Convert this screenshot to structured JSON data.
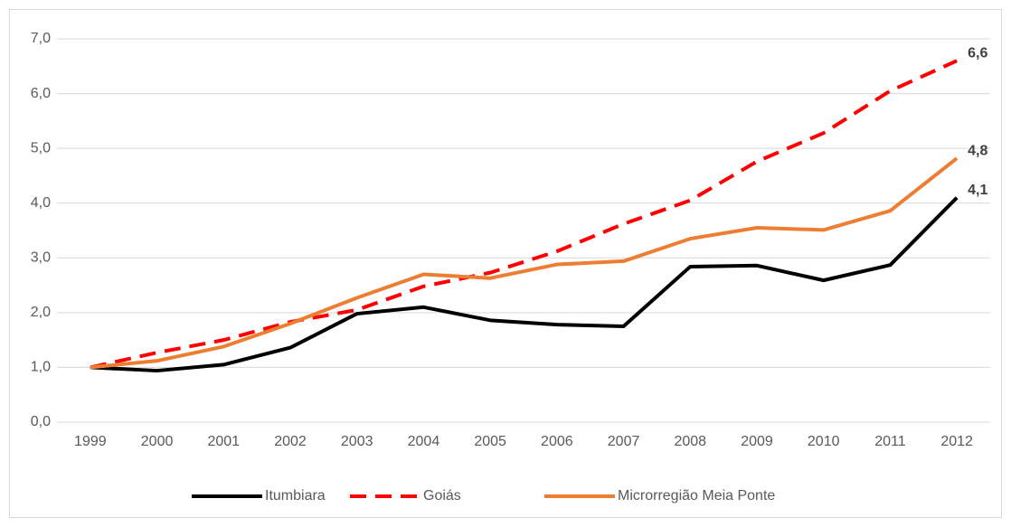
{
  "chart_data": {
    "type": "line",
    "categories": [
      "1999",
      "2000",
      "2001",
      "2002",
      "2003",
      "2004",
      "2005",
      "2006",
      "2007",
      "2008",
      "2009",
      "2010",
      "2011",
      "2012"
    ],
    "series": [
      {
        "name": "Itumbiara",
        "color": "#000000",
        "dash": false,
        "values": [
          1.0,
          0.94,
          1.05,
          1.36,
          1.98,
          2.1,
          1.86,
          1.78,
          1.75,
          2.84,
          2.86,
          2.59,
          2.87,
          4.1
        ],
        "value_labels": [
          null,
          null,
          null,
          null,
          null,
          null,
          null,
          null,
          null,
          null,
          null,
          null,
          null,
          "4,1"
        ]
      },
      {
        "name": "Goiás",
        "color": "#ff0000",
        "dash": true,
        "values": [
          1.0,
          1.27,
          1.5,
          1.83,
          2.05,
          2.48,
          2.73,
          3.12,
          3.62,
          4.05,
          4.76,
          5.28,
          6.05,
          6.6
        ],
        "value_labels": [
          null,
          null,
          null,
          null,
          null,
          null,
          null,
          null,
          null,
          null,
          null,
          null,
          null,
          "6,6"
        ]
      },
      {
        "name": "Microrregião Meia Ponte",
        "color": "#ed7d31",
        "dash": false,
        "values": [
          1.0,
          1.12,
          1.38,
          1.8,
          2.27,
          2.7,
          2.63,
          2.88,
          2.94,
          3.35,
          3.55,
          3.51,
          3.86,
          4.82
        ],
        "value_labels": [
          null,
          null,
          null,
          null,
          null,
          null,
          null,
          null,
          null,
          null,
          null,
          null,
          null,
          "4,8"
        ]
      }
    ],
    "ylim": [
      0,
      7
    ],
    "yticks": [
      {
        "value": 0,
        "label": "0,0"
      },
      {
        "value": 1,
        "label": "1,0"
      },
      {
        "value": 2,
        "label": "2,0"
      },
      {
        "value": 3,
        "label": "3,0"
      },
      {
        "value": 4,
        "label": "4,0"
      },
      {
        "value": 5,
        "label": "5,0"
      },
      {
        "value": 6,
        "label": "6,0"
      },
      {
        "value": 7,
        "label": "7,0"
      }
    ],
    "grid": true,
    "legend": "bottom"
  }
}
